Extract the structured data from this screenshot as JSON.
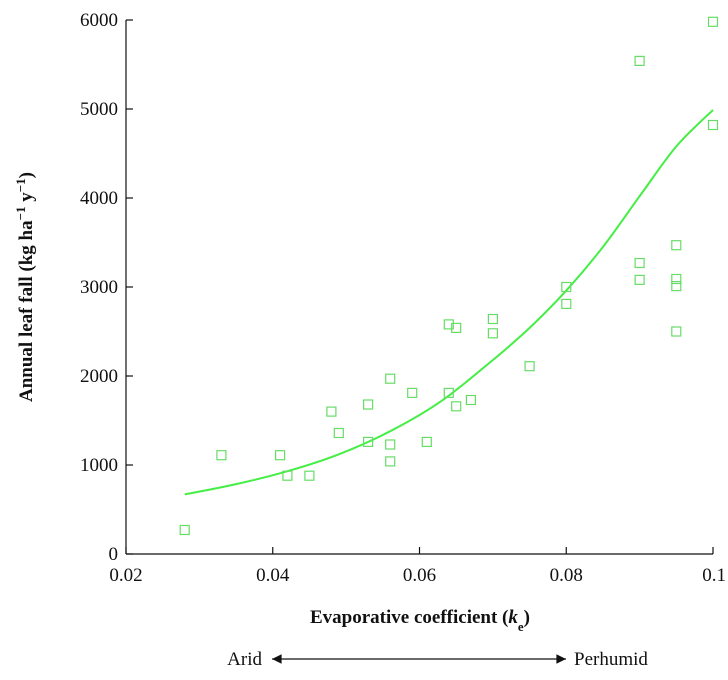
{
  "chart_data": {
    "type": "scatter",
    "title": "",
    "xlabel": {
      "text": "Evaporative coefficient (",
      "symbol": "k",
      "subscript": "e",
      "suffix": ")"
    },
    "ylabel": {
      "text": "Annual leaf fall (kg ha",
      "sup1": "−1",
      "middle": " y",
      "sup2": "−1",
      "suffix": ")"
    },
    "xlim": [
      0.02,
      0.1
    ],
    "ylim": [
      0,
      6000
    ],
    "x_ticks": [
      0.02,
      0.04,
      0.06,
      0.08,
      0.1
    ],
    "x_tick_labels": [
      "0.02",
      "0.04",
      "0.06",
      "0.08",
      "0.1"
    ],
    "y_ticks": [
      0,
      1000,
      2000,
      3000,
      4000,
      5000,
      6000
    ],
    "y_tick_labels": [
      "0",
      "1000",
      "2000",
      "3000",
      "4000",
      "5000",
      "6000"
    ],
    "grid": false,
    "marker_color": "#66dd66",
    "curve_color": "#44ee44",
    "series": [
      {
        "points": [
          {
            "x": 0.028,
            "y": 270
          },
          {
            "x": 0.033,
            "y": 1110
          },
          {
            "x": 0.041,
            "y": 1110
          },
          {
            "x": 0.042,
            "y": 880
          },
          {
            "x": 0.045,
            "y": 880
          },
          {
            "x": 0.048,
            "y": 1600
          },
          {
            "x": 0.049,
            "y": 1360
          },
          {
            "x": 0.053,
            "y": 1680
          },
          {
            "x": 0.053,
            "y": 1260
          },
          {
            "x": 0.056,
            "y": 1970
          },
          {
            "x": 0.056,
            "y": 1230
          },
          {
            "x": 0.056,
            "y": 1040
          },
          {
            "x": 0.059,
            "y": 1810
          },
          {
            "x": 0.061,
            "y": 1260
          },
          {
            "x": 0.064,
            "y": 2580
          },
          {
            "x": 0.064,
            "y": 1810
          },
          {
            "x": 0.065,
            "y": 2540
          },
          {
            "x": 0.065,
            "y": 1660
          },
          {
            "x": 0.067,
            "y": 1730
          },
          {
            "x": 0.07,
            "y": 2640
          },
          {
            "x": 0.07,
            "y": 2480
          },
          {
            "x": 0.075,
            "y": 2110
          },
          {
            "x": 0.08,
            "y": 3000
          },
          {
            "x": 0.08,
            "y": 2810
          },
          {
            "x": 0.09,
            "y": 5540
          },
          {
            "x": 0.09,
            "y": 3270
          },
          {
            "x": 0.09,
            "y": 3080
          },
          {
            "x": 0.095,
            "y": 3470
          },
          {
            "x": 0.095,
            "y": 3090
          },
          {
            "x": 0.095,
            "y": 3010
          },
          {
            "x": 0.095,
            "y": 2500
          },
          {
            "x": 0.1,
            "y": 5980
          },
          {
            "x": 0.1,
            "y": 4820
          }
        ]
      }
    ],
    "fit_curve": {
      "type": "exponential",
      "x_range": [
        0.028,
        0.1
      ],
      "points": [
        {
          "x": 0.028,
          "y": 670
        },
        {
          "x": 0.035,
          "y": 785
        },
        {
          "x": 0.042,
          "y": 930
        },
        {
          "x": 0.049,
          "y": 1120
        },
        {
          "x": 0.056,
          "y": 1380
        },
        {
          "x": 0.063,
          "y": 1720
        },
        {
          "x": 0.07,
          "y": 2180
        },
        {
          "x": 0.075,
          "y": 2540
        },
        {
          "x": 0.08,
          "y": 2960
        },
        {
          "x": 0.085,
          "y": 3450
        },
        {
          "x": 0.09,
          "y": 4020
        },
        {
          "x": 0.095,
          "y": 4580
        },
        {
          "x": 0.1,
          "y": 4990
        }
      ]
    },
    "scale_annotation": {
      "left_label": "Arid",
      "right_label": "Perhumid"
    }
  }
}
